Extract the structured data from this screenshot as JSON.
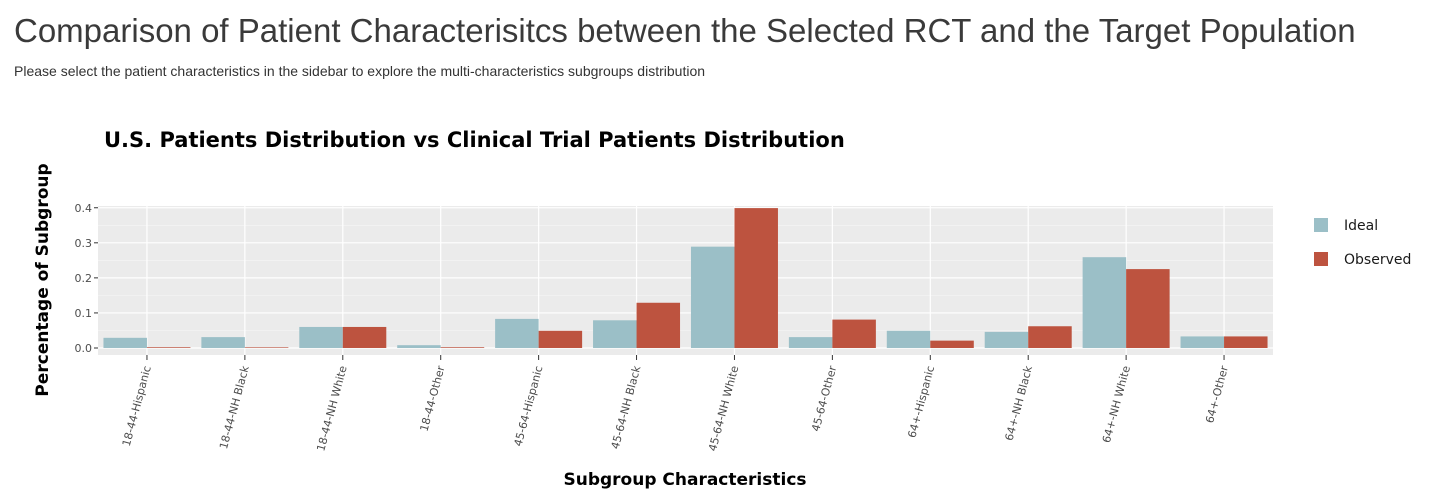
{
  "page": {
    "title": "Comparison of Patient Characterisitcs between the Selected RCT and the Target Population",
    "subtitle": "Please select the patient characteristics in the sidebar to explore the multi-characteristics subgroups distribution"
  },
  "chart_data": {
    "type": "bar",
    "title": "U.S. Patients Distribution vs Clinical Trial Patients Distribution",
    "xlabel": "Subgroup Characteristics",
    "ylabel": "Percentage of Subgroup",
    "categories": [
      "18-44-Hispanic",
      "18-44-NH Black",
      "18-44-NH White",
      "18-44-Other",
      "45-64-Hispanic",
      "45-64-NH Black",
      "45-64-NH White",
      "45-64-Other",
      "64+-Hispanic",
      "64+-NH Black",
      "64+-NH White",
      "64+-Other"
    ],
    "series": [
      {
        "name": "Ideal",
        "color": "#9bbfc7",
        "values": [
          0.029,
          0.031,
          0.06,
          0.008,
          0.083,
          0.079,
          0.289,
          0.031,
          0.049,
          0.046,
          0.259,
          0.033
        ]
      },
      {
        "name": "Observed",
        "color": "#bd533f",
        "values": [
          0.002,
          0.0,
          0.06,
          0.002,
          0.049,
          0.129,
          0.399,
          0.081,
          0.021,
          0.062,
          0.225,
          0.033
        ]
      }
    ],
    "yticks": [
      "0.0",
      "0.1",
      "0.2",
      "0.3",
      "0.4"
    ],
    "ylim": [
      -0.02,
      0.405
    ],
    "grid": true,
    "legend": "right",
    "background": "#ebebeb"
  }
}
